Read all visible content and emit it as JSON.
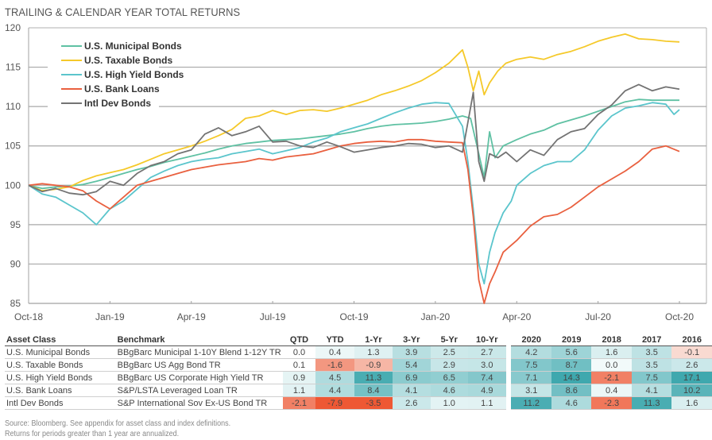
{
  "title": "TRAILING & CALENDAR YEAR TOTAL RETURNS",
  "chart_data": {
    "type": "line",
    "title": "TRAILING & CALENDAR YEAR TOTAL RETURNS",
    "xlabel": "",
    "ylabel": "",
    "ylim": [
      85,
      120
    ],
    "yticks": [
      85,
      90,
      95,
      100,
      105,
      110,
      115,
      120
    ],
    "xticks": [
      "Oct-18",
      "Jan-19",
      "Apr-19",
      "Jul-19",
      "Oct-19",
      "Jan-20",
      "Apr-20",
      "Jul-20",
      "Oct-20"
    ],
    "x_months_range": [
      0,
      24
    ],
    "grid": true,
    "legend_position": "top-left",
    "series": [
      {
        "name": "U.S.  Municipal Bonds",
        "color": "#5fc1a3",
        "x": [
          0,
          0.5,
          1,
          1.5,
          2,
          2.5,
          3,
          3.5,
          4,
          4.5,
          5,
          5.5,
          6,
          6.5,
          7,
          7.5,
          8,
          8.5,
          9,
          9.5,
          10,
          10.5,
          11,
          11.5,
          12,
          12.5,
          13,
          13.5,
          14,
          14.5,
          15,
          15.5,
          16,
          16.3,
          16.6,
          16.8,
          17,
          17.2,
          17.5,
          18,
          18.5,
          19,
          19.5,
          20,
          20.5,
          21,
          21.5,
          22,
          22.5,
          23,
          23.5,
          24
        ],
        "y": [
          100,
          99.6,
          99.8,
          99.9,
          100.1,
          100.5,
          101.0,
          101.5,
          102.0,
          102.4,
          102.9,
          103.3,
          103.7,
          104.1,
          104.6,
          105.0,
          105.3,
          105.5,
          105.7,
          105.8,
          105.9,
          106.1,
          106.3,
          106.5,
          106.8,
          107.2,
          107.5,
          107.7,
          107.8,
          107.9,
          108.1,
          108.4,
          108.8,
          108.5,
          104.0,
          101.0,
          106.8,
          103.5,
          105.0,
          105.8,
          106.5,
          107.0,
          107.8,
          108.3,
          108.8,
          109.4,
          110.0,
          110.6,
          110.9,
          110.8,
          110.8,
          110.8
        ]
      },
      {
        "name": "U.S. Taxable Bonds",
        "color": "#f5c92a",
        "x": [
          0,
          0.5,
          1,
          1.5,
          2,
          2.5,
          3,
          3.5,
          4,
          4.5,
          5,
          5.5,
          6,
          6.5,
          7,
          7.5,
          8,
          8.5,
          9,
          9.5,
          10,
          10.5,
          11,
          11.5,
          12,
          12.5,
          13,
          13.5,
          14,
          14.5,
          15,
          15.5,
          16,
          16.2,
          16.4,
          16.6,
          16.8,
          17.0,
          17.3,
          17.6,
          18,
          18.5,
          19,
          19.5,
          20,
          20.5,
          21,
          21.5,
          22,
          22.5,
          23,
          23.5,
          24
        ],
        "y": [
          100,
          99.3,
          99.5,
          99.8,
          100.6,
          101.2,
          101.6,
          102.0,
          102.6,
          103.3,
          104.0,
          104.5,
          105.0,
          105.6,
          106.3,
          107.1,
          108.5,
          108.8,
          109.5,
          109.0,
          109.5,
          109.6,
          109.4,
          109.8,
          110.3,
          110.8,
          111.5,
          112.0,
          112.6,
          113.3,
          114.3,
          115.5,
          117.2,
          115.0,
          112.0,
          114.5,
          111.5,
          113.0,
          114.5,
          115.5,
          116.0,
          116.3,
          116.0,
          116.6,
          117.0,
          117.6,
          118.3,
          118.8,
          119.2,
          118.6,
          118.5,
          118.3,
          118.2
        ]
      },
      {
        "name": "U.S. High Yield Bonds",
        "color": "#5bc5cc",
        "x": [
          0,
          0.5,
          1,
          1.5,
          2,
          2.5,
          3,
          3.5,
          4,
          4.5,
          5,
          5.5,
          6,
          6.5,
          7,
          7.5,
          8,
          8.5,
          9,
          9.5,
          10,
          10.5,
          11,
          11.5,
          12,
          12.5,
          13,
          13.5,
          14,
          14.5,
          15,
          15.5,
          16,
          16.2,
          16.4,
          16.6,
          16.8,
          17.0,
          17.2,
          17.5,
          17.8,
          18,
          18.5,
          19,
          19.5,
          20,
          20.5,
          21,
          21.5,
          22,
          22.5,
          23,
          23.5,
          23.8,
          24
        ],
        "y": [
          100,
          98.9,
          98.5,
          97.5,
          96.5,
          95.0,
          97.0,
          98.0,
          99.5,
          101.0,
          101.8,
          102.5,
          103.0,
          103.3,
          103.5,
          104.0,
          104.3,
          104.6,
          104.0,
          104.4,
          104.8,
          105.5,
          106.0,
          106.8,
          107.3,
          107.8,
          108.5,
          109.2,
          109.8,
          110.3,
          110.5,
          110.4,
          107.5,
          103.0,
          97.0,
          90.0,
          87.5,
          91.5,
          94.0,
          96.5,
          98.0,
          100.0,
          101.5,
          102.5,
          103.0,
          103.0,
          104.5,
          107.0,
          108.8,
          109.8,
          110.1,
          110.5,
          110.3,
          109.0,
          109.6
        ]
      },
      {
        "name": "U.S. Bank Loans",
        "color": "#e9603f",
        "x": [
          0,
          0.5,
          1,
          1.5,
          2,
          2.5,
          3,
          3.5,
          4,
          4.5,
          5,
          5.5,
          6,
          6.5,
          7,
          7.5,
          8,
          8.5,
          9,
          9.5,
          10,
          10.5,
          11,
          11.5,
          12,
          12.5,
          13,
          13.5,
          14,
          14.5,
          15,
          15.5,
          16,
          16.2,
          16.4,
          16.6,
          16.8,
          17.0,
          17.2,
          17.5,
          18,
          18.5,
          19,
          19.5,
          20,
          20.5,
          21,
          21.5,
          22,
          22.5,
          23,
          23.5,
          24
        ],
        "y": [
          100,
          100.2,
          100,
          99.8,
          99.3,
          98.0,
          97.0,
          98.5,
          100.0,
          100.5,
          101.0,
          101.5,
          102.0,
          102.3,
          102.6,
          102.8,
          103.0,
          103.4,
          103.2,
          103.6,
          103.8,
          104.0,
          104.5,
          105.0,
          105.3,
          105.5,
          105.6,
          105.5,
          105.8,
          105.8,
          105.6,
          105.5,
          105.4,
          102.0,
          96.0,
          88.0,
          85.0,
          87.5,
          89.0,
          91.5,
          93.0,
          94.8,
          96.0,
          96.3,
          97.2,
          98.5,
          99.8,
          100.8,
          101.8,
          103.0,
          104.6,
          105.0,
          104.3
        ]
      },
      {
        "name": "Intl Dev Bonds",
        "color": "#737373",
        "x": [
          0,
          0.5,
          1,
          1.5,
          2,
          2.5,
          3,
          3.5,
          4,
          4.5,
          5,
          5.5,
          6,
          6.5,
          7,
          7.5,
          8,
          8.5,
          9,
          9.5,
          10,
          10.5,
          11,
          11.5,
          12,
          12.5,
          13,
          13.5,
          14,
          14.5,
          15,
          15.5,
          16,
          16.2,
          16.4,
          16.6,
          16.8,
          17.0,
          17.3,
          17.6,
          18,
          18.5,
          19,
          19.5,
          20,
          20.5,
          21,
          21.5,
          22,
          22.5,
          23,
          23.5,
          24
        ],
        "y": [
          100,
          99.2,
          99.6,
          99.0,
          98.8,
          99.2,
          100.5,
          100.0,
          101.5,
          102.5,
          103.0,
          104.0,
          104.5,
          106.5,
          107.3,
          106.3,
          106.8,
          107.5,
          105.5,
          105.6,
          105.0,
          104.8,
          105.5,
          104.9,
          104.2,
          104.5,
          104.8,
          105.0,
          105.3,
          105.2,
          104.8,
          105.0,
          104.2,
          108.0,
          111.8,
          103.0,
          100.5,
          104.0,
          103.5,
          104.2,
          103.0,
          104.5,
          103.8,
          105.8,
          106.8,
          107.2,
          109.0,
          110.2,
          112.0,
          112.8,
          112.0,
          112.5,
          112.2
        ]
      }
    ]
  },
  "table": {
    "headers": [
      "Asset Class",
      "Benchmark",
      "QTD",
      "YTD",
      "1-Yr",
      "3-Yr",
      "5-Yr",
      "10-Yr",
      "2020",
      "2019",
      "2018",
      "2017",
      "2016"
    ],
    "rows": [
      {
        "asset": "U.S. Municipal Bonds",
        "benchmark": "BBgBarc Municipal 1-10Y Blend 1-12Y TR",
        "values": [
          "0.0",
          "0.4",
          "1.3",
          "3.9",
          "2.5",
          "2.7",
          "4.2",
          "5.6",
          "1.6",
          "3.5",
          "-0.1"
        ]
      },
      {
        "asset": "U.S. Taxable Bonds",
        "benchmark": "BBgBarc US Agg Bond TR",
        "values": [
          "0.1",
          "-1.6",
          "-0.9",
          "5.4",
          "2.9",
          "3.0",
          "7.5",
          "8.7",
          "0.0",
          "3.5",
          "2.6"
        ]
      },
      {
        "asset": "U.S. High Yield Bonds",
        "benchmark": "BBgBarc US Corporate High Yield TR",
        "values": [
          "0.9",
          "4.5",
          "11.3",
          "6.9",
          "6.5",
          "7.4",
          "7.1",
          "14.3",
          "-2.1",
          "7.5",
          "17.1"
        ]
      },
      {
        "asset": "U.S. Bank Loans",
        "benchmark": "S&P/LSTA Leveraged Loan TR",
        "values": [
          "1.1",
          "4.4",
          "8.4",
          "4.1",
          "4.6",
          "4.9",
          "3.1",
          "8.6",
          "0.4",
          "4.1",
          "10.2"
        ]
      },
      {
        "asset": "Intl Dev Bonds",
        "benchmark": "S&P International Sov Ex-US Bond TR",
        "values": [
          "-2.1",
          "-7.9",
          "-3.5",
          "2.6",
          "1.0",
          "1.1",
          "11.2",
          "4.6",
          "-2.3",
          "11.3",
          "1.6"
        ]
      }
    ]
  },
  "footnotes": [
    "Source: Bloomberg. See appendix for asset class and index definitions.",
    "Returns for periods greater than 1 year are annualized."
  ]
}
